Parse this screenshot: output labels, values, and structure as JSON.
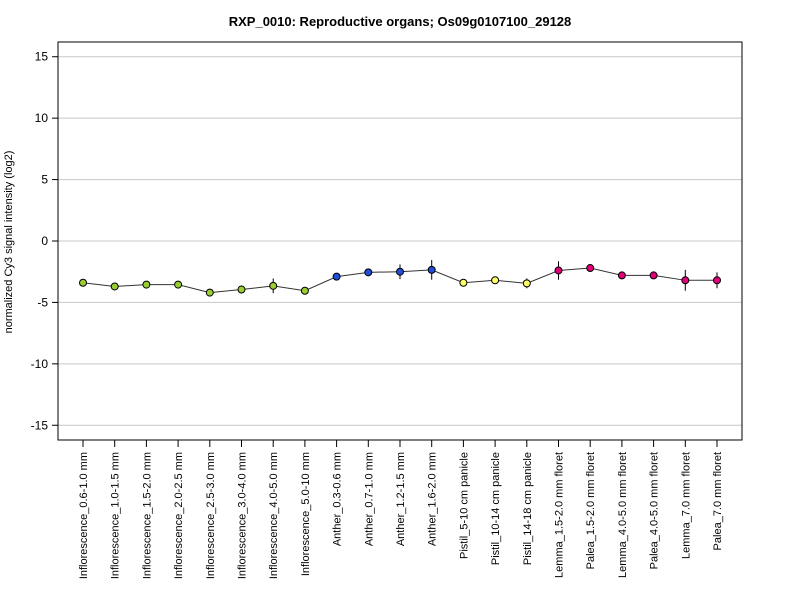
{
  "chart_data": {
    "type": "line",
    "title": "RXP_0010: Reproductive organs; Os09g0107100_29128",
    "xlabel": "",
    "ylabel": "normalized Cy3 signal intensity (log2)",
    "ylim": [
      -16.2,
      16.2
    ],
    "yticks": [
      -15,
      -10,
      -5,
      0,
      5,
      10,
      15
    ],
    "grid": true,
    "categories": [
      "Inflorescence_0.6-1.0 mm",
      "Inflorescence_1.0-1.5 mm",
      "Inflorescence_1.5-2.0 mm",
      "Inflorescence_2.0-2.5 mm",
      "Inflorescence_2.5-3.0 mm",
      "Inflorescence_3.0-4.0 mm",
      "Inflorescence_4.0-5.0 mm",
      "Inflorescence_5.0-10 mm",
      "Anther_0.3-0.6 mm",
      "Anther_0.7-1.0 mm",
      "Anther_1.2-1.5 mm",
      "Anther_1.6-2.0 mm",
      "Pistil_5-10 cm panicle",
      "Pistil_10-14 cm panicle",
      "Pistil_14-18 cm panicle",
      "Lemma_1.5-2.0 mm floret",
      "Palea_1.5-2.0 mm floret",
      "Lemma_4.0-5.0 mm floret",
      "Palea_4.0-5.0 mm floret",
      "Lemma_7.0 mm floret",
      "Palea_7.0 mm floret"
    ],
    "values": [
      -3.4,
      -3.7,
      -3.55,
      -3.55,
      -4.2,
      -3.95,
      -3.65,
      -4.05,
      -2.9,
      -2.55,
      -2.5,
      -2.35,
      -3.4,
      -3.2,
      -3.45,
      -2.4,
      -2.2,
      -2.8,
      -2.8,
      -3.2,
      -3.2
    ],
    "errors": [
      0.1,
      0.1,
      0.3,
      0.15,
      0.1,
      0.15,
      0.6,
      0.15,
      0.1,
      0.1,
      0.6,
      0.8,
      0.3,
      0.15,
      0.4,
      0.75,
      0.25,
      0.3,
      0.2,
      0.85,
      0.65
    ],
    "point_colors": [
      "#9ACD32",
      "#9ACD32",
      "#9ACD32",
      "#9ACD32",
      "#9ACD32",
      "#9ACD32",
      "#9ACD32",
      "#9ACD32",
      "#1F4FD8",
      "#1F4FD8",
      "#1F4FD8",
      "#1F4FD8",
      "#FFFF66",
      "#FFFF66",
      "#FFFF66",
      "#E0007A",
      "#E0007A",
      "#E0007A",
      "#E0007A",
      "#E0007A",
      "#E0007A"
    ]
  }
}
